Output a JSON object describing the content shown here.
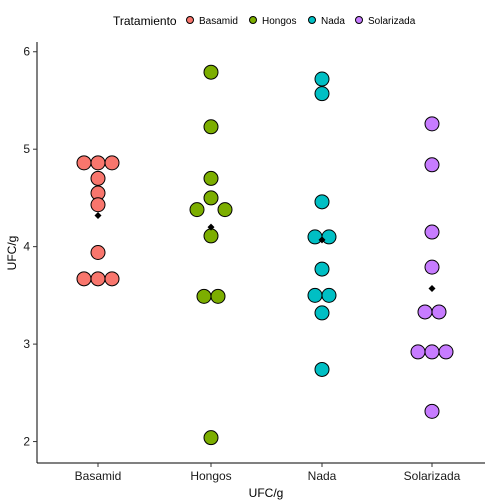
{
  "chart_data": {
    "type": "scatter",
    "subtype": "dotplot",
    "xlabel": "UFC/g",
    "ylabel": "UFC/g",
    "ylim": [
      1.78,
      6.1
    ],
    "yticks": [
      2,
      3,
      4,
      5,
      6
    ],
    "grid": false,
    "legend": {
      "title": "Tratamiento",
      "position": "top"
    },
    "categories": [
      "Basamid",
      "Hongos",
      "Nada",
      "Solarizada"
    ],
    "series": [
      {
        "name": "Basamid",
        "color": "#F8766D",
        "points": [
          {
            "y": 4.86,
            "slot": -1
          },
          {
            "y": 4.86,
            "slot": 0
          },
          {
            "y": 4.86,
            "slot": 1
          },
          {
            "y": 4.7,
            "slot": 0
          },
          {
            "y": 4.55,
            "slot": 0
          },
          {
            "y": 4.43,
            "slot": 0
          },
          {
            "y": 3.94,
            "slot": 0
          },
          {
            "y": 3.67,
            "slot": -1
          },
          {
            "y": 3.67,
            "slot": 0
          },
          {
            "y": 3.67,
            "slot": 1
          }
        ],
        "mean": 4.32
      },
      {
        "name": "Hongos",
        "color": "#7CAE00",
        "points": [
          {
            "y": 5.79,
            "slot": 0
          },
          {
            "y": 5.23,
            "slot": 0
          },
          {
            "y": 4.7,
            "slot": 0
          },
          {
            "y": 4.5,
            "slot": 0
          },
          {
            "y": 4.38,
            "slot": -1
          },
          {
            "y": 4.38,
            "slot": 1
          },
          {
            "y": 4.11,
            "slot": 0
          },
          {
            "y": 3.49,
            "slot": -0.5
          },
          {
            "y": 3.49,
            "slot": 0.5
          },
          {
            "y": 2.04,
            "slot": 0
          }
        ],
        "mean": 4.2
      },
      {
        "name": "Nada",
        "color": "#00BFC4",
        "points": [
          {
            "y": 5.72,
            "slot": 0
          },
          {
            "y": 5.57,
            "slot": 0
          },
          {
            "y": 4.46,
            "slot": 0
          },
          {
            "y": 4.1,
            "slot": -0.5
          },
          {
            "y": 4.1,
            "slot": 0.5
          },
          {
            "y": 3.77,
            "slot": 0
          },
          {
            "y": 3.5,
            "slot": -0.5
          },
          {
            "y": 3.5,
            "slot": 0.5
          },
          {
            "y": 3.32,
            "slot": 0
          },
          {
            "y": 2.74,
            "slot": 0
          }
        ],
        "mean": 4.07
      },
      {
        "name": "Solarizada",
        "color": "#C77CFF",
        "points": [
          {
            "y": 5.26,
            "slot": 0
          },
          {
            "y": 4.84,
            "slot": 0
          },
          {
            "y": 4.15,
            "slot": 0
          },
          {
            "y": 3.79,
            "slot": 0
          },
          {
            "y": 3.33,
            "slot": -0.5
          },
          {
            "y": 3.33,
            "slot": 0.5
          },
          {
            "y": 2.92,
            "slot": -1
          },
          {
            "y": 2.92,
            "slot": 0
          },
          {
            "y": 2.92,
            "slot": 1
          },
          {
            "y": 2.31,
            "slot": 0
          }
        ],
        "mean": 3.57
      }
    ]
  }
}
